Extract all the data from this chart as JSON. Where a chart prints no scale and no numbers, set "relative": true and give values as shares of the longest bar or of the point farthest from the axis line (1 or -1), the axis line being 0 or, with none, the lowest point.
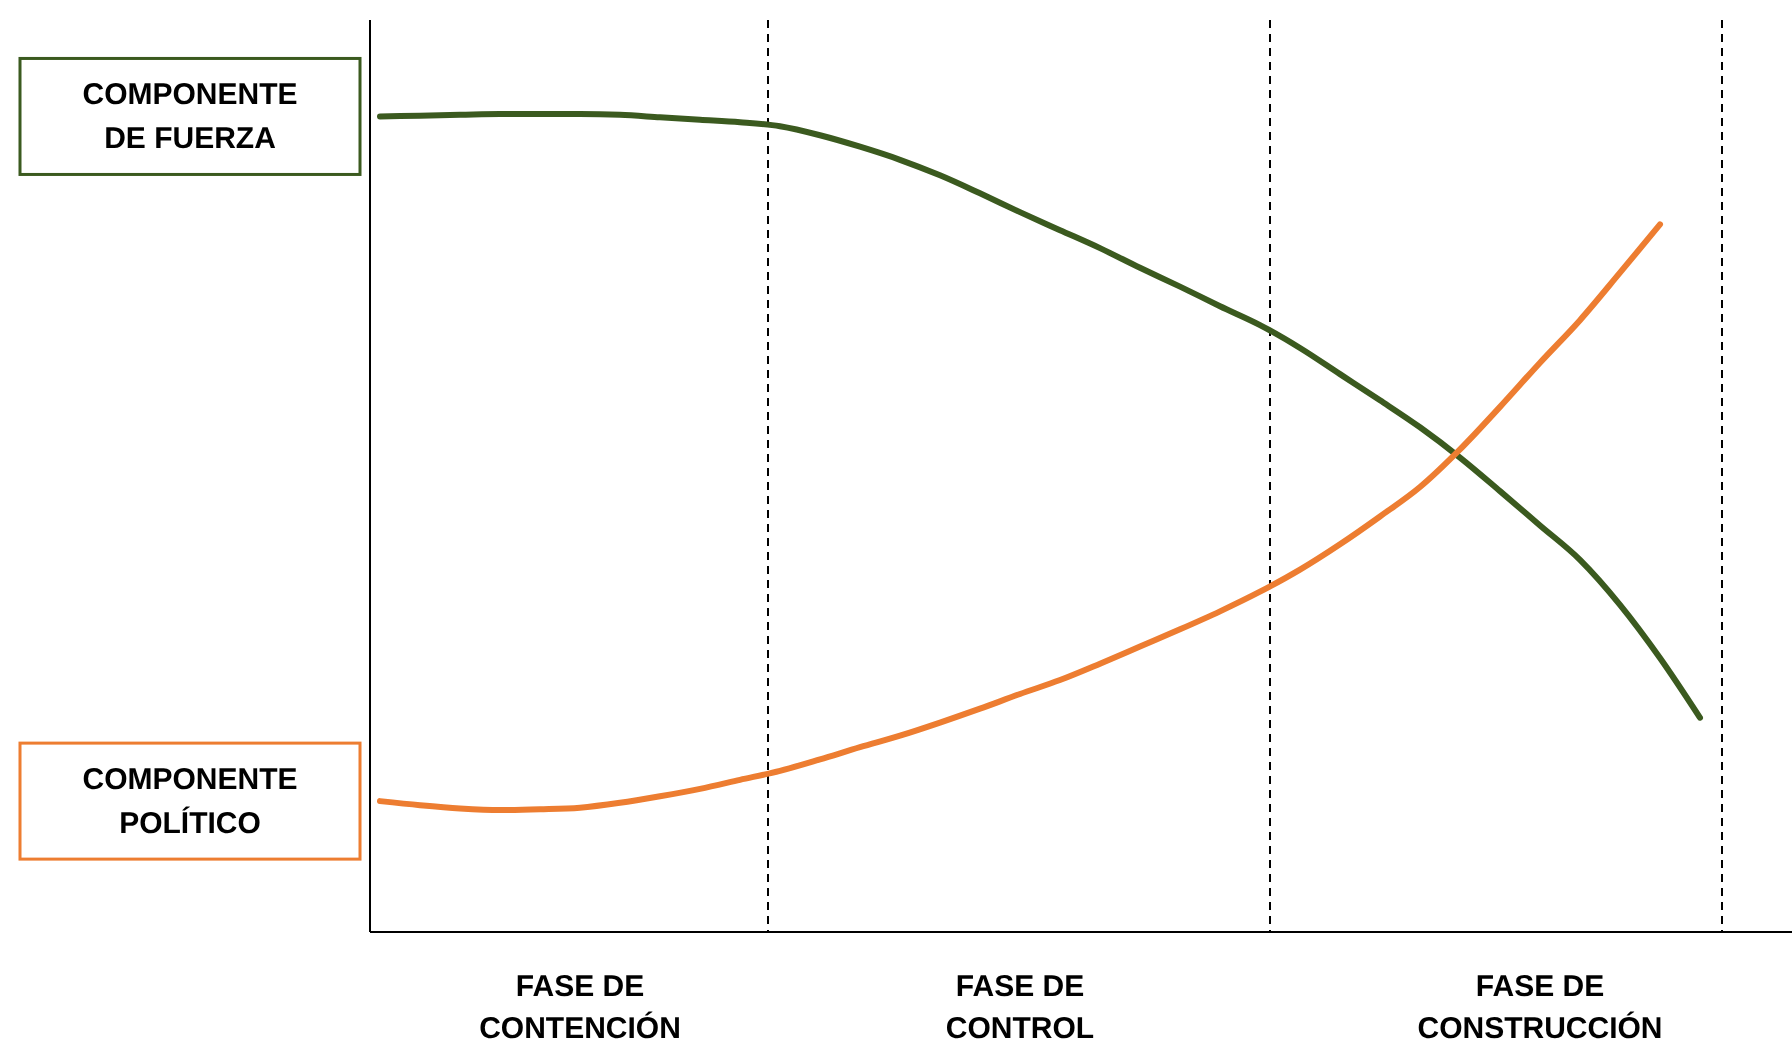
{
  "chart_data": {
    "type": "line",
    "relative": true,
    "categories": [
      null,
      null,
      null,
      null,
      null,
      "FASE DE\nCONTENCIÓN",
      null,
      null,
      null,
      null,
      null,
      null,
      null,
      null,
      null,
      null,
      "FASE DE\nCONTROL",
      null,
      null,
      null,
      null,
      null,
      null,
      null,
      null,
      null,
      null,
      null,
      null,
      "FASE DE\nCONSTRUCCIÓN",
      null,
      null,
      null,
      null,
      null,
      null
    ],
    "series": [
      {
        "name": "COMPONENTE\nDE FUERZA",
        "color": "#3b5a1f",
        "values": [
          0.997,
          0.998,
          0.999,
          1.0,
          1.0,
          1.0,
          0.999,
          0.996,
          0.993,
          0.99,
          0.985,
          0.974,
          0.96,
          0.944,
          0.925,
          0.903,
          0.88,
          0.858,
          0.836,
          0.812,
          0.789,
          0.765,
          0.742,
          0.714,
          0.682,
          0.65,
          0.617,
          0.58,
          0.539,
          0.497,
          0.455,
          0.4,
          0.335,
          0.262,
          null,
          null
        ]
      },
      {
        "name": "COMPONENTE\nPOLÍTICO",
        "color": "#ed7d31",
        "values": [
          0.16,
          0.155,
          0.151,
          0.149,
          0.15,
          0.152,
          0.158,
          0.166,
          0.175,
          0.186,
          0.197,
          0.211,
          0.226,
          0.24,
          0.256,
          0.273,
          0.291,
          0.308,
          0.328,
          0.349,
          0.37,
          0.392,
          0.416,
          0.443,
          0.474,
          0.508,
          0.544,
          0.59,
          0.642,
          0.696,
          0.748,
          0.806,
          0.865,
          null,
          null,
          null
        ]
      }
    ],
    "legend": "left",
    "grid": false,
    "marker": "none",
    "line_style": "solid"
  }
}
